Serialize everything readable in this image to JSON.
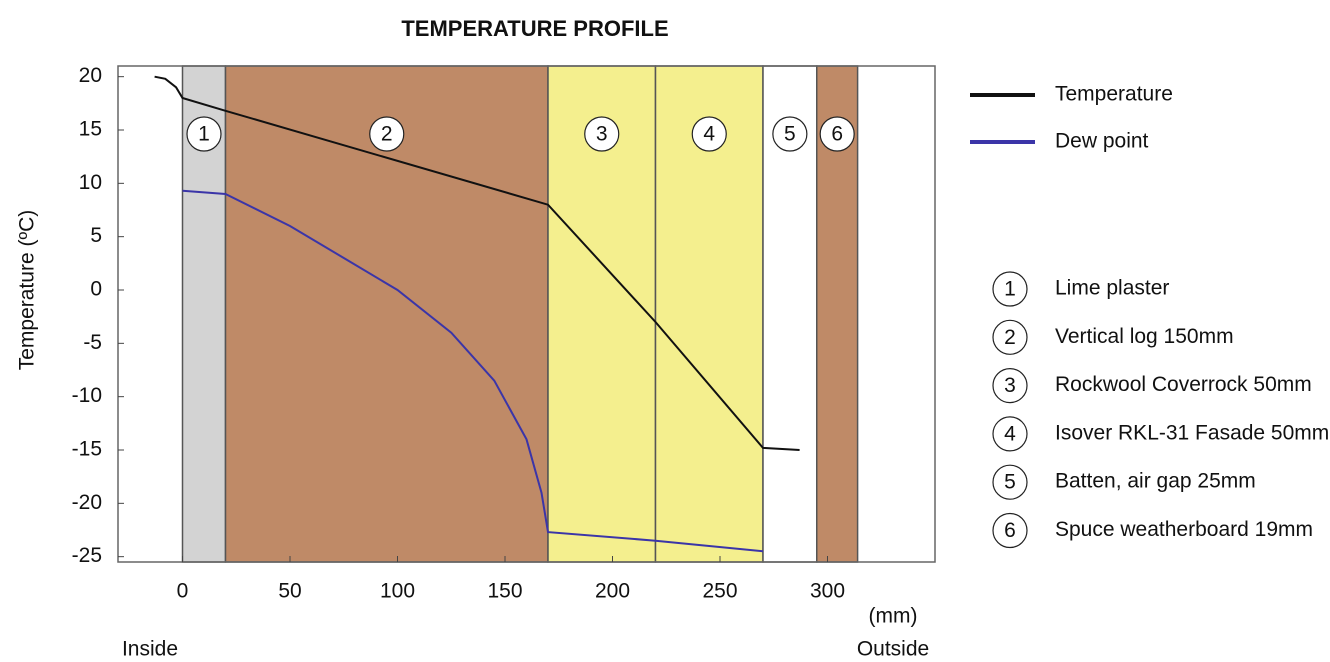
{
  "chart_data": {
    "type": "line",
    "title": "TEMPERATURE PROFILE",
    "y_label": "Temperature (ºC)",
    "x_unit_label": "(mm)",
    "left_annotation": "Inside",
    "right_annotation": "Outside",
    "xlim": [
      -30,
      350
    ],
    "ylim": [
      -25.5,
      21
    ],
    "xticks": [
      0,
      50,
      100,
      150,
      200,
      250,
      300
    ],
    "yticks": [
      20,
      15,
      10,
      5,
      0,
      -5,
      -10,
      -15,
      -20,
      -25
    ],
    "series": [
      {
        "name": "Temperature",
        "color": "#111111",
        "x": [
          -13,
          -8,
          -3,
          0,
          20,
          170,
          220,
          270,
          287
        ],
        "values": [
          20,
          19.8,
          19,
          18,
          16.8,
          8,
          -3,
          -14.8,
          -15
        ]
      },
      {
        "name": "Dew point",
        "color": "#3b35a8",
        "x": [
          0,
          20,
          50,
          75,
          100,
          125,
          145,
          160,
          167,
          170,
          220,
          270
        ],
        "values": [
          9.3,
          9,
          6,
          3,
          0,
          -4,
          -8.5,
          -14,
          -19,
          -22.7,
          -23.5,
          -24.5
        ]
      }
    ],
    "layers": [
      {
        "number": "1",
        "name": "Lime plaster",
        "start": 0,
        "end": 20,
        "color": "#d3d3d3"
      },
      {
        "number": "2",
        "name": "Vertical log 150mm",
        "start": 20,
        "end": 170,
        "color": "#bf8a67"
      },
      {
        "number": "3",
        "name": "Rockwool Coverrock 50mm",
        "start": 170,
        "end": 220,
        "color": "#f4ef8e"
      },
      {
        "number": "4",
        "name": "Isover RKL-31 Fasade 50mm",
        "start": 220,
        "end": 270,
        "color": "#f4ef8e"
      },
      {
        "number": "5",
        "name": "Batten, air gap 25mm",
        "start": 270,
        "end": 295,
        "color": "#ffffff"
      },
      {
        "number": "6",
        "name": "Spuce weatherboard 19mm",
        "start": 295,
        "end": 314,
        "color": "#bf8a67"
      }
    ]
  }
}
